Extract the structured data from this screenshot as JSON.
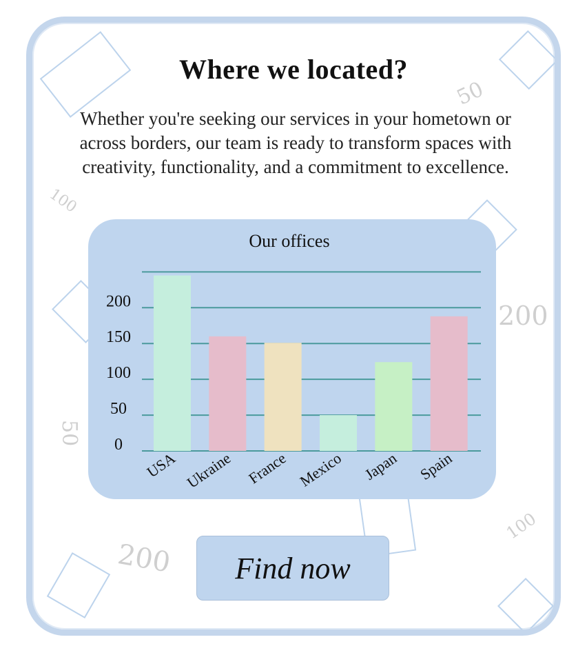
{
  "header": {
    "title": "Where we located?",
    "intro": "Whether you're seeking our services in your hometown or across borders, our team is ready to transform spaces with creativity, functionality, and a commitment to excellence."
  },
  "decoration_numbers": [
    "50",
    "100",
    "200",
    "50",
    "200",
    "100"
  ],
  "chart_data": {
    "type": "bar",
    "title": "Our offices",
    "xlabel": "",
    "ylabel": "",
    "categories": [
      "USA",
      "Ukraine",
      "France",
      "Mexico",
      "Japan",
      "Spain"
    ],
    "values": [
      245,
      160,
      151,
      50,
      124,
      188
    ],
    "yticks": [
      "0",
      "50",
      "100",
      "150",
      "200"
    ],
    "ylim": [
      0,
      260
    ],
    "grid": true,
    "bar_colors": [
      "#c5eedd",
      "#e6bccb",
      "#efe2bf",
      "#c5eedd",
      "#c6f0c5",
      "#e6bccb"
    ]
  },
  "cta": {
    "label": "Find now"
  },
  "colors": {
    "card_border": "#c4d6ec",
    "panel": "#bfd5ee",
    "gridline": "#4a9a9c"
  }
}
